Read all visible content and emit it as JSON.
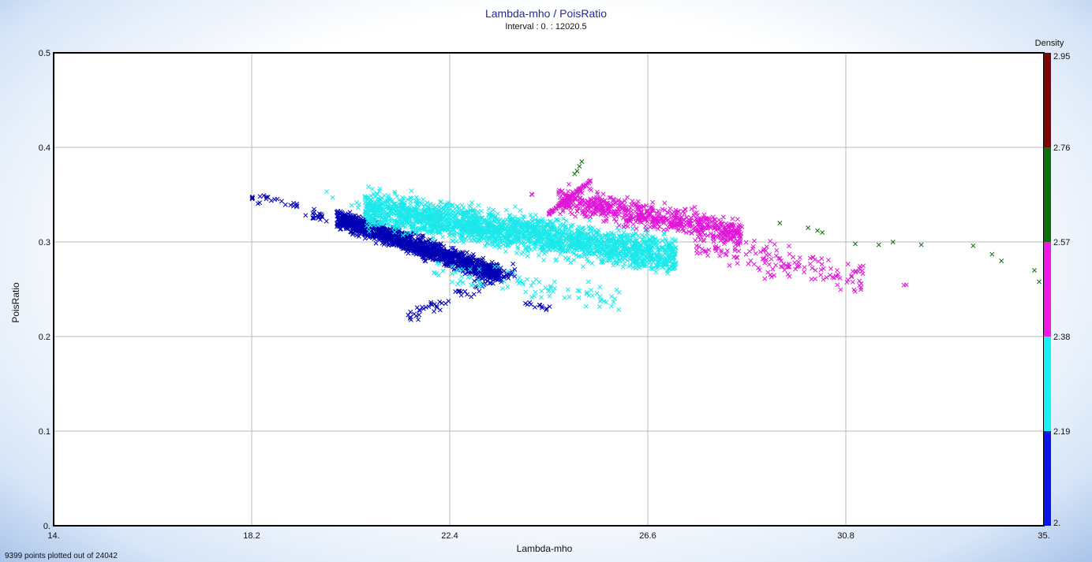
{
  "chart_data": {
    "type": "scatter",
    "title": "Lambda-mho / PoisRatio",
    "subtitle": "Interval : 0. : 12020.5",
    "xlabel": "Lambda-mho",
    "ylabel": "PoisRatio",
    "xlim": [
      14,
      35
    ],
    "ylim": [
      0,
      0.5
    ],
    "x_ticks": [
      "14.",
      "18.2",
      "22.4",
      "26.6",
      "30.8",
      "35."
    ],
    "x_tick_values": [
      14,
      18.2,
      22.4,
      26.6,
      30.8,
      35
    ],
    "y_ticks": [
      "0.",
      "0.1",
      "0.2",
      "0.3",
      "0.4",
      "0.5"
    ],
    "y_tick_values": [
      0,
      0.1,
      0.2,
      0.3,
      0.4,
      0.5
    ],
    "grid": true,
    "marker": "x",
    "colorbar": {
      "label": "Density",
      "ticks": [
        "2.",
        "2.19",
        "2.38",
        "2.57",
        "2.76",
        "2.95"
      ],
      "tick_values": [
        2.0,
        2.19,
        2.38,
        2.57,
        2.76,
        2.95
      ],
      "colors": [
        "#0a16e8",
        "#19f2f2",
        "#f019e8",
        "#0b6e0b",
        "#7a0606"
      ]
    },
    "series": [
      {
        "color": "#0000b4",
        "clusters": [
          {
            "x": [
              20.0,
              23.5
            ],
            "y_start": [
              0.325,
              0.265
            ],
            "y_spread": 0.03,
            "n": 1400
          },
          {
            "x": [
              18.2,
              19.8
            ],
            "y_start": [
              0.35,
              0.325
            ],
            "y_spread": 0.02,
            "n": 40
          },
          {
            "x": [
              21.5,
              23.8
            ],
            "y_start": [
              0.22,
              0.27
            ],
            "y_spread": 0.02,
            "n": 70
          },
          {
            "x": [
              24.0,
              24.6
            ],
            "y_start": [
              0.235,
              0.23
            ],
            "y_spread": 0.01,
            "n": 12
          }
        ]
      },
      {
        "color": "#1ce8ea",
        "clusters": [
          {
            "x": [
              20.6,
              27.2
            ],
            "y_start": [
              0.335,
              0.285
            ],
            "y_spread": 0.055,
            "n": 2400
          },
          {
            "x": [
              22.0,
              26.0
            ],
            "y_start": [
              0.27,
              0.24
            ],
            "y_spread": 0.04,
            "n": 90
          },
          {
            "x": [
              19.6,
              20.5
            ],
            "y_start": [
              0.36,
              0.34
            ],
            "y_spread": 0.02,
            "n": 6
          }
        ]
      },
      {
        "color": "#e016d8",
        "clusters": [
          {
            "x": [
              24.7,
              28.6
            ],
            "y_start": [
              0.345,
              0.31
            ],
            "y_spread": 0.04,
            "n": 650
          },
          {
            "x": [
              27.6,
              31.2
            ],
            "y_start": [
              0.3,
              0.26
            ],
            "y_spread": 0.05,
            "n": 160
          },
          {
            "x": [
              24.5,
              25.4
            ],
            "y_start": [
              0.33,
              0.365
            ],
            "y_spread": 0.004,
            "n": 90
          },
          {
            "x": [
              32.0,
              32.4
            ],
            "y_start": [
              0.255,
              0.252
            ],
            "y_spread": 0.004,
            "n": 2
          },
          {
            "x": [
              24.1,
              24.2
            ],
            "y_start": [
              0.352,
              0.35
            ],
            "y_spread": 0.003,
            "n": 2
          }
        ]
      },
      {
        "color": "#0b6e0b",
        "points": [
          [
            25.2,
            0.385
          ],
          [
            25.15,
            0.38
          ],
          [
            25.1,
            0.375
          ],
          [
            25.05,
            0.372
          ],
          [
            29.4,
            0.32
          ],
          [
            30.0,
            0.315
          ],
          [
            30.2,
            0.312
          ],
          [
            30.3,
            0.31
          ],
          [
            31.0,
            0.298
          ],
          [
            31.5,
            0.297
          ],
          [
            31.8,
            0.3
          ],
          [
            32.4,
            0.297
          ],
          [
            33.5,
            0.296
          ],
          [
            33.9,
            0.287
          ],
          [
            34.1,
            0.28
          ],
          [
            34.8,
            0.27
          ],
          [
            34.9,
            0.258
          ]
        ]
      }
    ]
  },
  "footer_text": "9399 points plotted out of 24042"
}
